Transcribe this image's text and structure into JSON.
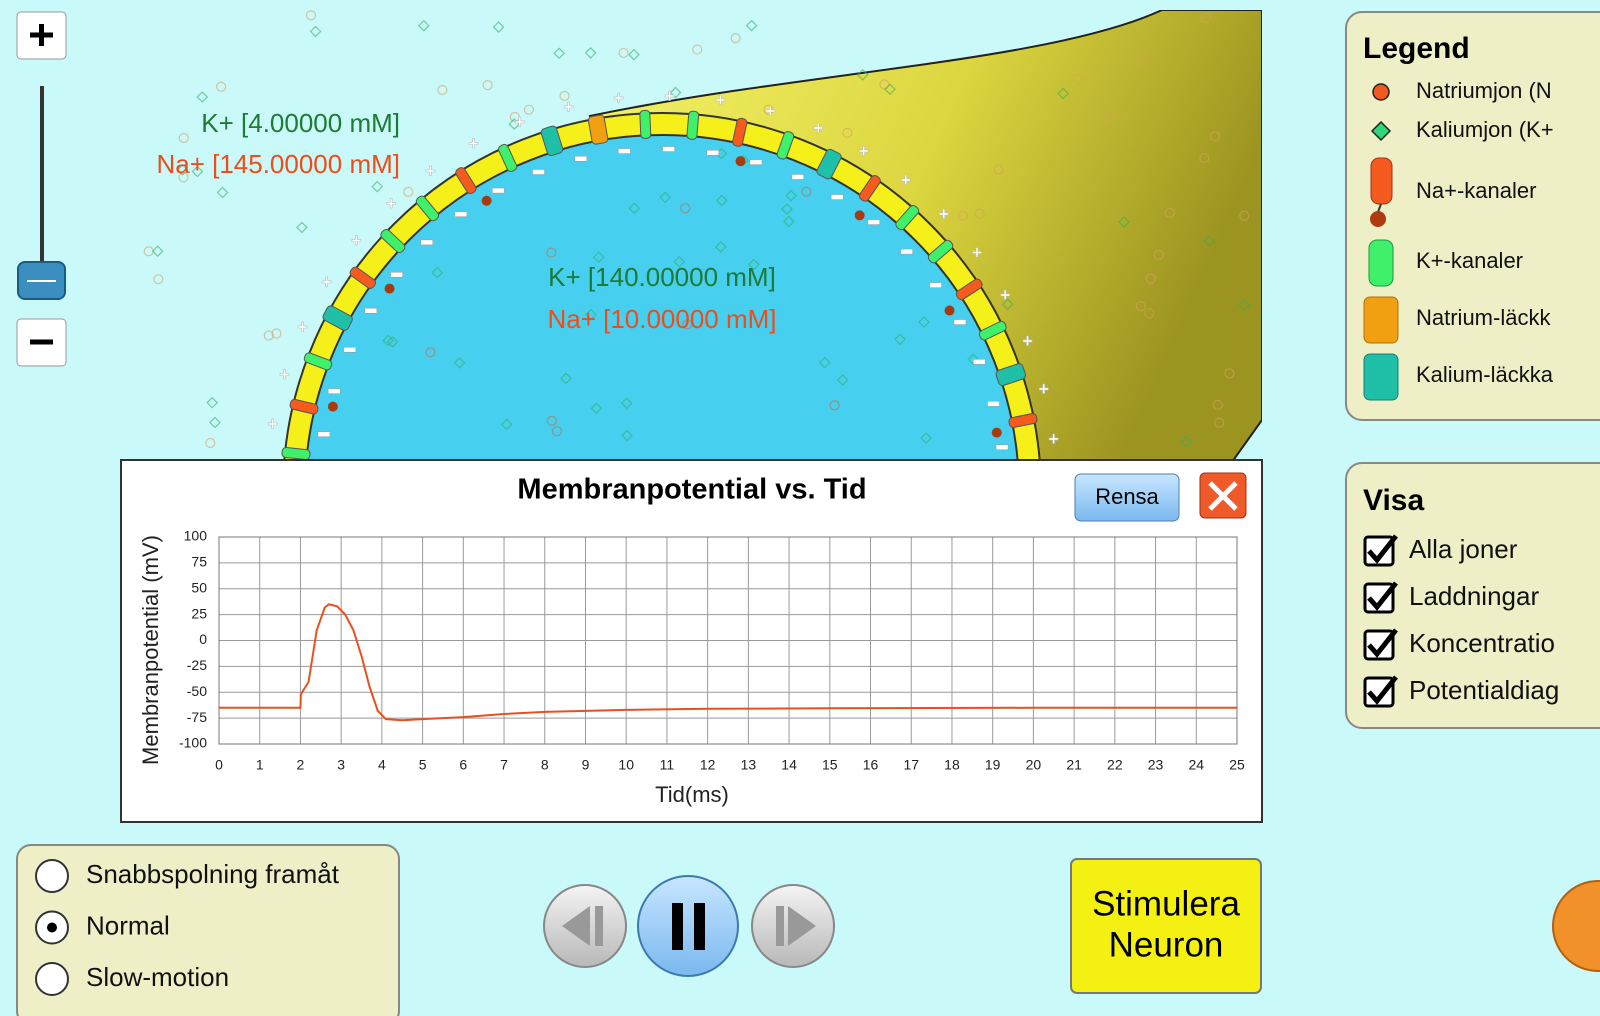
{
  "concentrations": {
    "outside_k": "K+ [4.00000 mM]",
    "outside_na": "Na+ [145.00000 mM]",
    "inside_k": "K+ [140.00000 mM]",
    "inside_na": "Na+ [10.00000 mM]"
  },
  "chart_panel": {
    "clear_button": "Rensa"
  },
  "chart_data": {
    "type": "line",
    "title": "Membranpotential vs. Tid",
    "x_label": "Tid(ms)",
    "y_label": "Membranpotential (mV)",
    "x": [
      0,
      2,
      2.01,
      2.2,
      2.4,
      2.6,
      2.7,
      2.9,
      3.1,
      3.3,
      3.5,
      3.7,
      3.9,
      4.1,
      4.5,
      5,
      6,
      7,
      8,
      10,
      12,
      15,
      20,
      25
    ],
    "values": [
      -65,
      -65,
      -52,
      -40,
      10,
      32,
      35,
      33,
      25,
      10,
      -15,
      -45,
      -68,
      -76,
      -77,
      -76,
      -74,
      -71,
      -69,
      -67,
      -66,
      -65.5,
      -65,
      -65
    ],
    "color": "#e8501e",
    "xlim": [
      0,
      25
    ],
    "xticks": [
      0,
      1,
      2,
      3,
      4,
      5,
      6,
      7,
      8,
      9,
      10,
      11,
      12,
      13,
      14,
      15,
      16,
      17,
      18,
      19,
      20,
      21,
      22,
      23,
      24,
      25
    ],
    "ylim": [
      -100,
      100
    ],
    "yticks": [
      -100,
      -75,
      -50,
      -25,
      0,
      25,
      50,
      75,
      100
    ],
    "grid": true
  },
  "legend": {
    "title": "Legend",
    "items": [
      "Natriumjon (N",
      "Kaliumjon (K+",
      "Na+-kanaler",
      "K+-kanaler",
      "Natrium-läckk",
      "Kalium-läckka"
    ]
  },
  "visa": {
    "title": "Visa",
    "options": [
      {
        "label": "Alla joner",
        "checked": true
      },
      {
        "label": "Laddningar",
        "checked": true
      },
      {
        "label": "Koncentratio",
        "checked": true
      },
      {
        "label": "Potentialdiag",
        "checked": true
      }
    ]
  },
  "speed": {
    "options": [
      {
        "label": "Snabbspolning framåt",
        "selected": false
      },
      {
        "label": "Normal",
        "selected": true
      },
      {
        "label": "Slow-motion",
        "selected": false
      }
    ]
  },
  "stimulate_button": [
    "Stimulera",
    "Neuron"
  ]
}
